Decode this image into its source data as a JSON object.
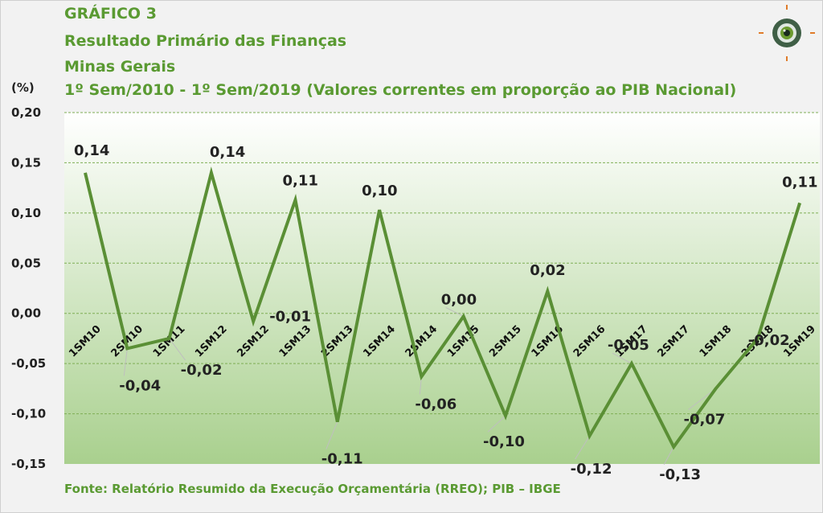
{
  "header": {
    "line1": "GRÁFICO 3",
    "line2": "Resultado Primário das Finanças",
    "line3": "Minas Gerais",
    "line4": "1º Sem/2010 - 1º Sem/2019 (Valores correntes em proporção ao PIB Nacional)"
  },
  "source": "Fonte: Relatório Resumido da Execução Orçamentária (RREO); PIB – IBGE",
  "logo": {
    "icon": "target-eye-icon"
  },
  "colors": {
    "line": "#5a8f35",
    "title": "#5a9a32",
    "grid": "#7fae55",
    "area_top": "#ffffff",
    "area_bottom": "#a9d08e"
  },
  "chart_data": {
    "type": "line",
    "ylabel": "(%)",
    "ylim": [
      -0.15,
      0.2
    ],
    "yticks": [
      "0,20",
      "0,15",
      "0,10",
      "0,05",
      "0,00",
      "-0,05",
      "-0,10",
      "-0,15"
    ],
    "ytick_values": [
      0.2,
      0.15,
      0.1,
      0.05,
      0.0,
      -0.05,
      -0.1,
      -0.15
    ],
    "categories": [
      "1SM10",
      "2SM10",
      "1SM11",
      "1SM12",
      "2SM12",
      "1SM13",
      "2SM13",
      "1SM14",
      "2SM14",
      "1SM15",
      "2SM15",
      "1SM16",
      "2SM16",
      "1SM17",
      "2SM17",
      "1SM18",
      "2SM18",
      "1SM19"
    ],
    "series": [
      {
        "values": [
          0.14,
          -0.035,
          -0.025,
          0.14,
          -0.008,
          0.113,
          -0.108,
          0.103,
          -0.063,
          -0.003,
          -0.102,
          0.022,
          -0.122,
          -0.05,
          -0.133,
          -0.075,
          -0.025,
          0.11
        ],
        "labels": [
          "0,14",
          "-0,04",
          "-0,02",
          "0,14",
          "-0,01",
          "0,11",
          "-0,11",
          "0,10",
          "-0,06",
          "0,00",
          "-0,10",
          "0,02",
          "-0,12",
          "-0,05",
          "-0,13",
          "-0,07",
          "-0,02",
          "0,11"
        ]
      }
    ],
    "grid": true,
    "legend": "none"
  }
}
